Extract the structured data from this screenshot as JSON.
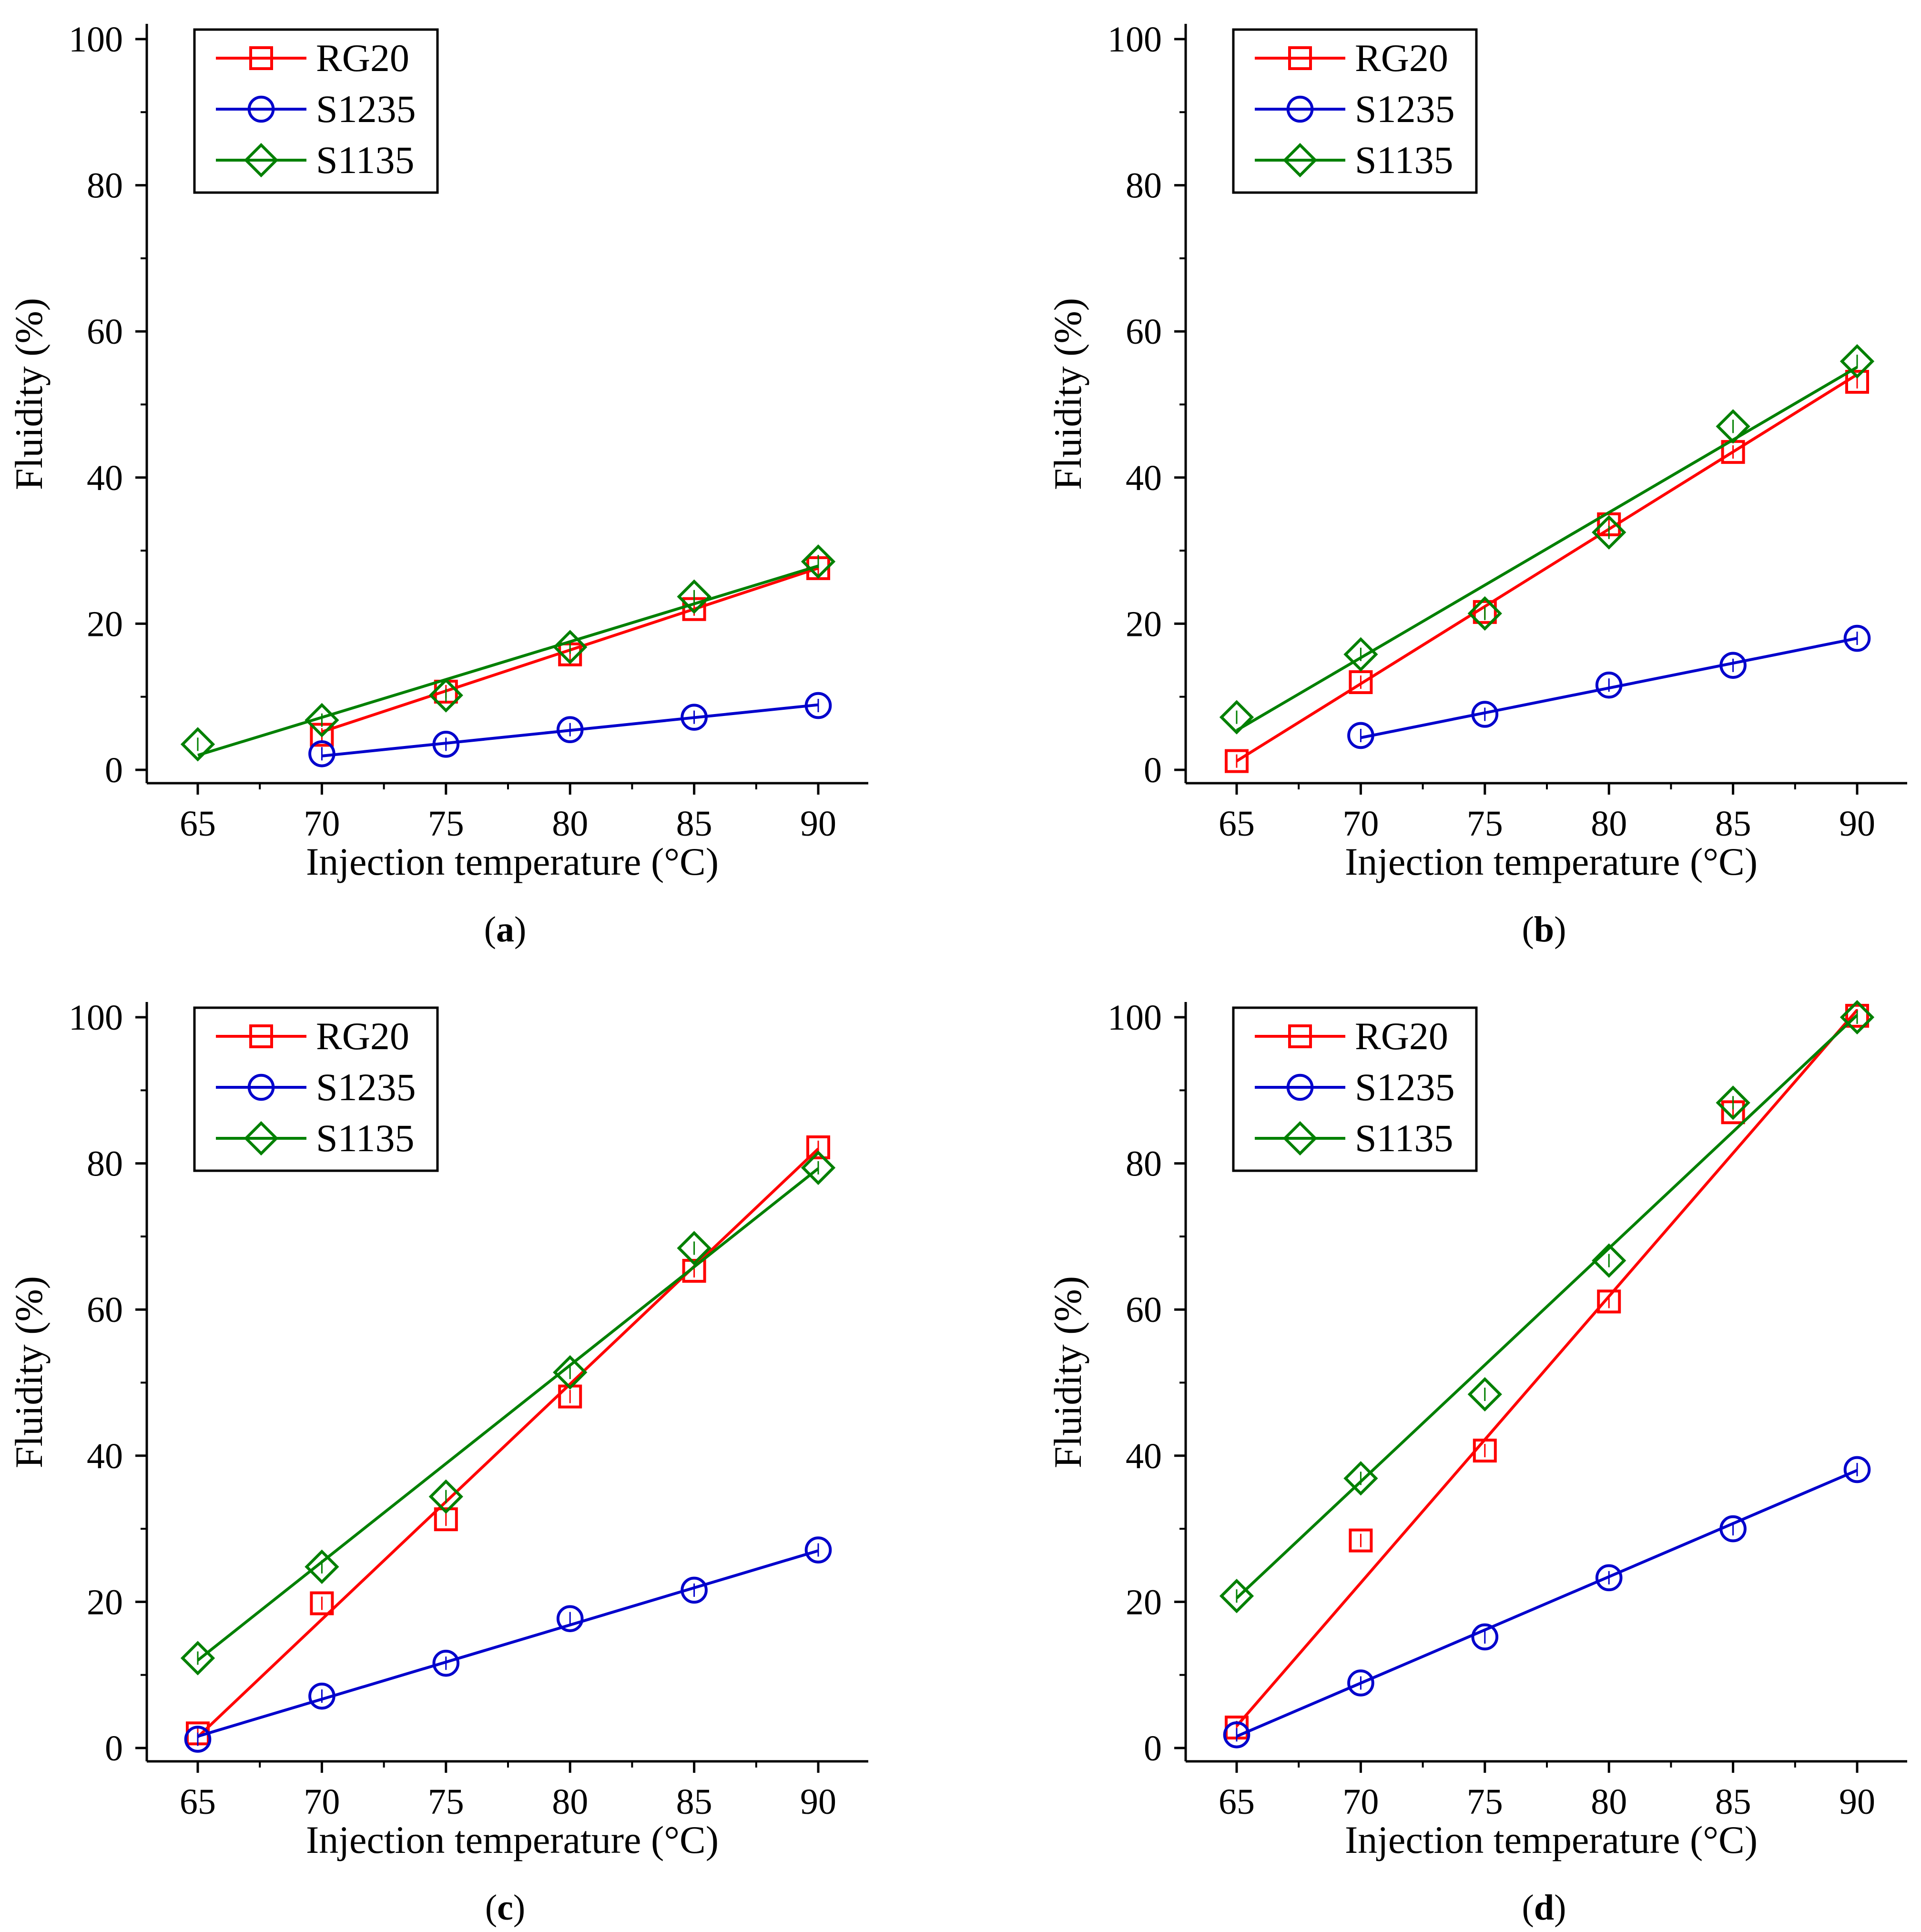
{
  "figure": {
    "colors": {
      "RG20": "#ff0000",
      "S1235": "#0000cc",
      "S1135": "#008000",
      "axis": "#000000"
    },
    "marker_shapes": {
      "RG20": "square",
      "S1235": "circle",
      "S1135": "diamond"
    }
  },
  "chart_data": [
    {
      "type": "line",
      "panel_label_prefix": "(",
      "panel_label": "a",
      "panel_label_suffix": ")",
      "xlabel": "Injection temperature (°C)",
      "ylabel": "Fluidity (%)",
      "xlim": [
        63,
        92
      ],
      "ylim": [
        -2,
        102
      ],
      "xticks": [
        65,
        70,
        75,
        80,
        85,
        90
      ],
      "yticks": [
        0,
        20,
        40,
        60,
        80,
        100
      ],
      "legend_position": "top-left",
      "series": [
        {
          "name": "RG20",
          "marker": "square",
          "color": "#ff0000",
          "points": [
            [
              70,
              4.8
            ],
            [
              75,
              10.7
            ],
            [
              80,
              15.8
            ],
            [
              85,
              22.0
            ],
            [
              90,
              27.6
            ]
          ],
          "fit": [
            [
              70,
              5.2
            ],
            [
              90,
              27.6
            ]
          ]
        },
        {
          "name": "S1235",
          "marker": "circle",
          "color": "#0000cc",
          "points": [
            [
              70,
              2.2
            ],
            [
              75,
              3.5
            ],
            [
              80,
              5.5
            ],
            [
              85,
              7.2
            ],
            [
              90,
              8.8
            ]
          ],
          "fit": [
            [
              70,
              1.9
            ],
            [
              90,
              8.9
            ]
          ]
        },
        {
          "name": "S1135",
          "marker": "diamond",
          "color": "#008000",
          "points": [
            [
              65,
              3.5
            ],
            [
              70,
              6.8
            ],
            [
              75,
              10.2
            ],
            [
              80,
              16.8
            ],
            [
              85,
              23.7
            ],
            [
              90,
              28.5
            ]
          ],
          "fit": [
            [
              65,
              2.0
            ],
            [
              90,
              27.9
            ]
          ]
        }
      ]
    },
    {
      "type": "line",
      "panel_label_prefix": "(",
      "panel_label": "b",
      "panel_label_suffix": ")",
      "xlabel": "Injection temperature (°C)",
      "ylabel": "Fluidity (%)",
      "xlim": [
        63,
        92
      ],
      "ylim": [
        -2,
        102
      ],
      "xticks": [
        65,
        70,
        75,
        80,
        85,
        90
      ],
      "yticks": [
        0,
        20,
        40,
        60,
        80,
        100
      ],
      "legend_position": "top-left",
      "series": [
        {
          "name": "RG20",
          "marker": "square",
          "color": "#ff0000",
          "points": [
            [
              65,
              1.2
            ],
            [
              70,
              12.0
            ],
            [
              75,
              21.6
            ],
            [
              80,
              33.6
            ],
            [
              85,
              43.5
            ],
            [
              90,
              53.1
            ]
          ],
          "fit": [
            [
              65,
              1.2
            ],
            [
              90,
              54.1
            ]
          ]
        },
        {
          "name": "S1235",
          "marker": "circle",
          "color": "#0000cc",
          "points": [
            [
              70,
              4.7
            ],
            [
              75,
              7.6
            ],
            [
              80,
              11.6
            ],
            [
              85,
              14.3
            ],
            [
              90,
              18.0
            ]
          ],
          "fit": [
            [
              70,
              4.4
            ],
            [
              90,
              18.0
            ]
          ]
        },
        {
          "name": "S1135",
          "marker": "diamond",
          "color": "#008000",
          "points": [
            [
              65,
              7.2
            ],
            [
              70,
              15.8
            ],
            [
              75,
              21.4
            ],
            [
              80,
              32.5
            ],
            [
              85,
              47.0
            ],
            [
              90,
              55.9
            ]
          ],
          "fit": [
            [
              65,
              5.4
            ],
            [
              90,
              55.1
            ]
          ]
        }
      ]
    },
    {
      "type": "line",
      "panel_label_prefix": "(",
      "panel_label": "c",
      "panel_label_suffix": ")",
      "xlabel": "Injection temperature (°C)",
      "ylabel": "Fluidity (%)",
      "xlim": [
        63,
        92
      ],
      "ylim": [
        -2,
        102
      ],
      "xticks": [
        65,
        70,
        75,
        80,
        85,
        90
      ],
      "yticks": [
        0,
        20,
        40,
        60,
        80,
        100
      ],
      "legend_position": "top-left",
      "series": [
        {
          "name": "RG20",
          "marker": "square",
          "color": "#ff0000",
          "points": [
            [
              65,
              2.0
            ],
            [
              70,
              19.8
            ],
            [
              75,
              31.3
            ],
            [
              80,
              48.1
            ],
            [
              85,
              65.3
            ],
            [
              90,
              82.2
            ]
          ],
          "fit": [
            [
              65,
              1.5
            ],
            [
              90,
              82.0
            ]
          ]
        },
        {
          "name": "S1235",
          "marker": "circle",
          "color": "#0000cc",
          "points": [
            [
              65,
              1.2
            ],
            [
              70,
              7.1
            ],
            [
              75,
              11.6
            ],
            [
              80,
              17.7
            ],
            [
              85,
              21.6
            ],
            [
              90,
              27.1
            ]
          ],
          "fit": [
            [
              65,
              1.6
            ],
            [
              90,
              27.0
            ]
          ]
        },
        {
          "name": "S1135",
          "marker": "diamond",
          "color": "#008000",
          "points": [
            [
              65,
              12.3
            ],
            [
              70,
              24.8
            ],
            [
              75,
              34.4
            ],
            [
              80,
              51.4
            ],
            [
              85,
              68.4
            ],
            [
              90,
              79.4
            ]
          ],
          "fit": [
            [
              65,
              12.0
            ],
            [
              90,
              79.3
            ]
          ]
        }
      ]
    },
    {
      "type": "line",
      "panel_label_prefix": "(",
      "panel_label": "d",
      "panel_label_suffix": ")",
      "xlabel": "Injection temperature (°C)",
      "ylabel": "Fluidity (%)",
      "xlim": [
        63,
        92
      ],
      "ylim": [
        -2,
        102
      ],
      "xticks": [
        65,
        70,
        75,
        80,
        85,
        90
      ],
      "yticks": [
        0,
        20,
        40,
        60,
        80,
        100
      ],
      "legend_position": "top-left",
      "series": [
        {
          "name": "RG20",
          "marker": "square",
          "color": "#ff0000",
          "points": [
            [
              65,
              2.8
            ],
            [
              70,
              28.4
            ],
            [
              75,
              40.7
            ],
            [
              80,
              61.1
            ],
            [
              85,
              87.0
            ],
            [
              90,
              100.2
            ]
          ],
          "fit": [
            [
              65,
              3.0
            ],
            [
              90,
              101.0
            ]
          ]
        },
        {
          "name": "S1235",
          "marker": "circle",
          "color": "#0000cc",
          "points": [
            [
              65,
              1.8
            ],
            [
              70,
              8.9
            ],
            [
              75,
              15.2
            ],
            [
              80,
              23.3
            ],
            [
              85,
              30.0
            ],
            [
              90,
              38.1
            ]
          ],
          "fit": [
            [
              65,
              1.6
            ],
            [
              90,
              38.0
            ]
          ]
        },
        {
          "name": "S1135",
          "marker": "diamond",
          "color": "#008000",
          "points": [
            [
              65,
              20.8
            ],
            [
              70,
              36.9
            ],
            [
              75,
              48.4
            ],
            [
              80,
              66.7
            ],
            [
              85,
              88.3
            ],
            [
              90,
              100.0
            ]
          ],
          "fit": [
            [
              65,
              20.5
            ],
            [
              90,
              100.3
            ]
          ]
        }
      ]
    }
  ]
}
